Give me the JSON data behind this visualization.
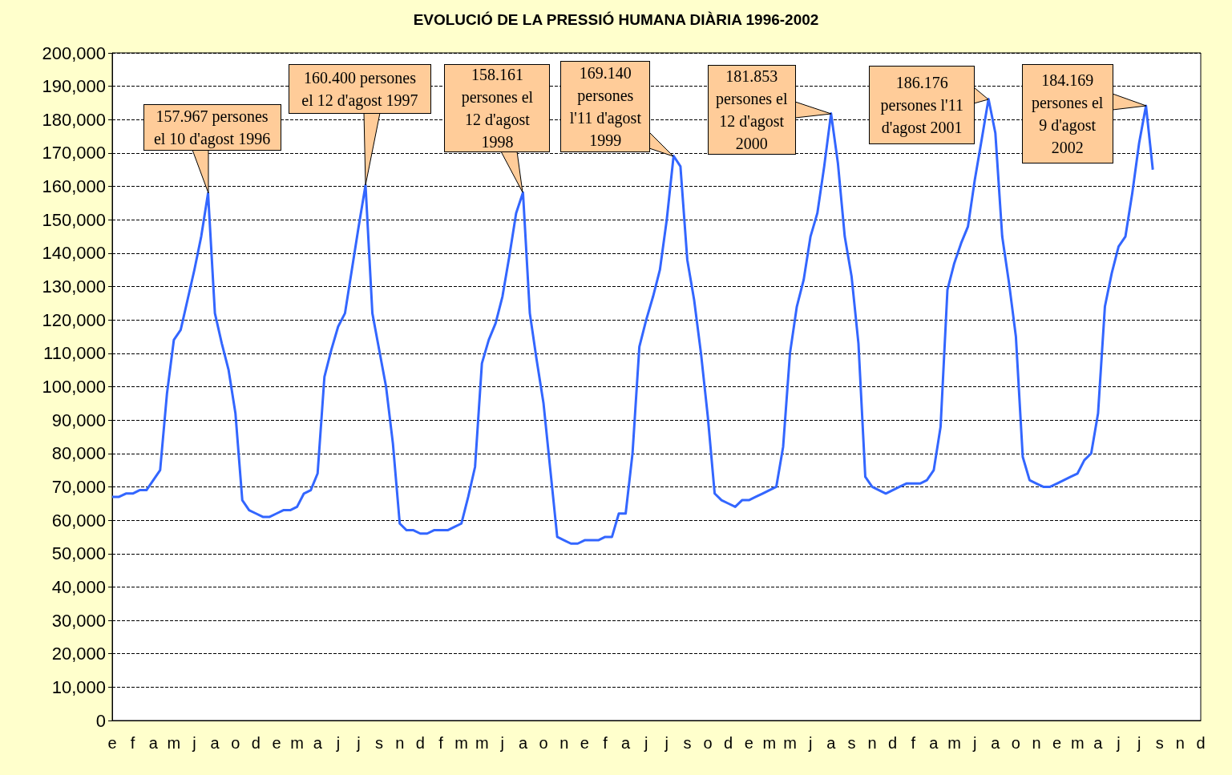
{
  "chart_data": {
    "type": "line",
    "title": "EVOLUCIÓ DE LA PRESSIÓ HUMANA DIÀRIA 1996-2002",
    "color": "#3366ff",
    "grid": "y",
    "categories": [
      "e",
      null,
      null,
      "f",
      null,
      null,
      "a",
      null,
      null,
      "m",
      null,
      null,
      "j",
      null,
      null,
      "a",
      null,
      null,
      "o",
      null,
      null,
      "d",
      null,
      null,
      "e",
      null,
      null,
      "m",
      null,
      null,
      "a",
      null,
      null,
      "j",
      null,
      null,
      "j",
      null,
      null,
      "s",
      null,
      null,
      "n",
      null,
      null,
      "d",
      null,
      null,
      "f",
      null,
      null,
      "m",
      null,
      null,
      "m",
      null,
      null,
      "j",
      null,
      null,
      "a",
      null,
      null,
      "o",
      null,
      null,
      "n",
      null,
      null,
      "e",
      null,
      null,
      "f",
      null,
      null,
      "a",
      null,
      null,
      "j",
      null,
      null,
      "j",
      null,
      null,
      "s",
      null,
      null,
      "o",
      null,
      null,
      "d",
      null,
      null,
      "e",
      null,
      null,
      "m",
      null,
      null,
      "m",
      null,
      null,
      "j",
      null,
      null,
      "a",
      null,
      null,
      "s",
      null,
      null,
      "n",
      null,
      null,
      "d",
      null,
      null,
      "f",
      null,
      null,
      "a",
      null,
      null,
      "m",
      null,
      null,
      "j",
      null,
      null,
      "a",
      null,
      null,
      "o",
      null,
      null,
      "n",
      null,
      null,
      "e",
      null,
      null,
      "m",
      null,
      null,
      "a",
      null,
      null,
      "j",
      null,
      null,
      "j",
      null,
      null,
      "s",
      null,
      null,
      "n",
      null,
      null,
      "d"
    ],
    "ylim": [
      0,
      200000
    ],
    "yticks": [
      {
        "value": 0,
        "label": "0"
      },
      {
        "value": 10000,
        "label": "10,000"
      },
      {
        "value": 20000,
        "label": "20,000"
      },
      {
        "value": 30000,
        "label": "30,000"
      },
      {
        "value": 40000,
        "label": "40,000"
      },
      {
        "value": 50000,
        "label": "50,000"
      },
      {
        "value": 60000,
        "label": "60,000"
      },
      {
        "value": 70000,
        "label": "70,000"
      },
      {
        "value": 80000,
        "label": "80,000"
      },
      {
        "value": 90000,
        "label": "90,000"
      },
      {
        "value": 100000,
        "label": "100,000"
      },
      {
        "value": 110000,
        "label": "110,000"
      },
      {
        "value": 120000,
        "label": "120,000"
      },
      {
        "value": 130000,
        "label": "130,000"
      },
      {
        "value": 140000,
        "label": "140,000"
      },
      {
        "value": 150000,
        "label": "150,000"
      },
      {
        "value": 160000,
        "label": "160,000"
      },
      {
        "value": 170000,
        "label": "170,000"
      },
      {
        "value": 180000,
        "label": "180,000"
      },
      {
        "value": 190000,
        "label": "190,000"
      },
      {
        "value": 200000,
        "label": "200,000"
      }
    ],
    "annotations": [
      "157.967 persones el 10 d'agost 1996",
      "160.400 persones el 12 d'agost 1997",
      "158.161 persones el 12 d'agost 1998",
      "169.140 persones l'11 d'agost 1999",
      "181.853 persones el 12 d'agost 2000",
      "186.176 persones l'11 d'agost 2001",
      "184.169 persones el 9 d'agost 2002"
    ],
    "values": [
      67000,
      67000,
      68000,
      68000,
      69000,
      69000,
      72000,
      75000,
      98000,
      114000,
      117000,
      126000,
      135000,
      145000,
      157967,
      122000,
      113000,
      105000,
      92000,
      66000,
      63000,
      62000,
      61000,
      61000,
      62000,
      63000,
      63000,
      64000,
      68000,
      69000,
      74000,
      103000,
      111000,
      118000,
      122000,
      135000,
      148000,
      160400,
      122000,
      111000,
      100000,
      83000,
      59000,
      57000,
      57000,
      56000,
      56000,
      57000,
      57000,
      57000,
      58000,
      59000,
      67000,
      76000,
      107000,
      114000,
      119000,
      127000,
      139000,
      152000,
      158161,
      122000,
      108000,
      95000,
      75000,
      55000,
      54000,
      53000,
      53000,
      54000,
      54000,
      54000,
      55000,
      55000,
      62000,
      62000,
      80000,
      112000,
      120000,
      127000,
      135000,
      150000,
      169140,
      166000,
      138000,
      126000,
      110000,
      91000,
      68000,
      66000,
      65000,
      64000,
      66000,
      66000,
      67000,
      68000,
      69000,
      70000,
      82000,
      110000,
      124000,
      132000,
      145000,
      152000,
      166000,
      181853,
      167000,
      145000,
      133000,
      113000,
      73000,
      70000,
      69000,
      68000,
      69000,
      70000,
      71000,
      71000,
      71000,
      72000,
      75000,
      88000,
      129000,
      137000,
      143000,
      148000,
      162000,
      174000,
      186176,
      176000,
      145000,
      131000,
      115000,
      79000,
      72000,
      71000,
      70000,
      70000,
      71000,
      72000,
      73000,
      74000,
      78000,
      80000,
      92000,
      124000,
      134000,
      142000,
      145000,
      158000,
      173000,
      184169,
      165000,
      null,
      null,
      null,
      null,
      null,
      null,
      null
    ]
  }
}
